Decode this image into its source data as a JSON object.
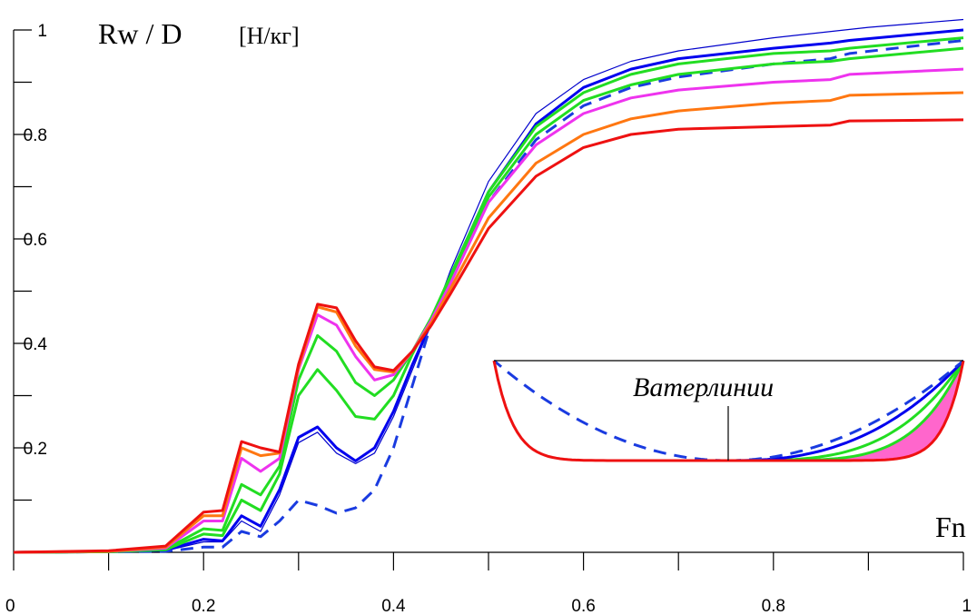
{
  "chart_data": {
    "type": "line",
    "ylabel": "Rw / D",
    "ylabel_unit": "[Н/кг]",
    "xlabel": "Fn",
    "xlim": [
      0,
      1
    ],
    "ylim": [
      0,
      1
    ],
    "x_ticks": [
      {
        "value": 0,
        "label": "0"
      },
      {
        "value": 0.2,
        "label": "0.2"
      },
      {
        "value": 0.4,
        "label": "0.4"
      },
      {
        "value": 0.6,
        "label": "0.6"
      },
      {
        "value": 0.8,
        "label": "0.8"
      },
      {
        "value": 1,
        "label": "1"
      }
    ],
    "x_minor_step": 0.1,
    "y_ticks": [
      {
        "value": 0.2,
        "label": "0.2"
      },
      {
        "value": 0.4,
        "label": "0.4"
      },
      {
        "value": 0.6,
        "label": "0.6"
      },
      {
        "value": 0.8,
        "label": "0.8"
      },
      {
        "value": 1,
        "label": "1"
      }
    ],
    "y_minor_step": 0.1,
    "grid": false,
    "legend": "none",
    "series": [
      {
        "color": "#0000cc",
        "dash": false,
        "width": 1.2,
        "x": [
          0,
          0.1,
          0.16,
          0.2,
          0.22,
          0.24,
          0.26,
          0.28,
          0.3,
          0.32,
          0.34,
          0.36,
          0.38,
          0.4,
          0.42,
          0.44,
          0.46,
          0.5,
          0.55,
          0.6,
          0.65,
          0.7,
          0.8,
          0.9,
          1.0
        ],
        "y": [
          0,
          0.001,
          0.003,
          0.02,
          0.02,
          0.06,
          0.04,
          0.11,
          0.21,
          0.23,
          0.19,
          0.17,
          0.19,
          0.26,
          0.35,
          0.44,
          0.54,
          0.71,
          0.84,
          0.905,
          0.94,
          0.96,
          0.985,
          1.005,
          1.02
        ]
      },
      {
        "color": "#0000ee",
        "dash": false,
        "width": 3,
        "x": [
          0,
          0.1,
          0.16,
          0.2,
          0.22,
          0.24,
          0.26,
          0.28,
          0.3,
          0.32,
          0.34,
          0.36,
          0.38,
          0.4,
          0.42,
          0.44,
          0.46,
          0.5,
          0.55,
          0.6,
          0.65,
          0.7,
          0.8,
          0.86,
          0.88,
          1.0
        ],
        "y": [
          0,
          0.001,
          0.004,
          0.025,
          0.022,
          0.07,
          0.05,
          0.12,
          0.22,
          0.24,
          0.2,
          0.175,
          0.2,
          0.27,
          0.36,
          0.44,
          0.53,
          0.69,
          0.82,
          0.89,
          0.925,
          0.945,
          0.965,
          0.975,
          0.98,
          1.0
        ]
      },
      {
        "color": "#1a3be0",
        "dash": true,
        "width": 3,
        "x": [
          0,
          0.1,
          0.16,
          0.2,
          0.22,
          0.24,
          0.26,
          0.28,
          0.3,
          0.32,
          0.34,
          0.36,
          0.38,
          0.4,
          0.42,
          0.44,
          0.46,
          0.5,
          0.55,
          0.6,
          0.65,
          0.7,
          0.8,
          0.86,
          0.88,
          1.0
        ],
        "y": [
          0,
          0.001,
          0.002,
          0.01,
          0.01,
          0.04,
          0.03,
          0.06,
          0.1,
          0.09,
          0.075,
          0.085,
          0.12,
          0.2,
          0.32,
          0.44,
          0.53,
          0.67,
          0.79,
          0.855,
          0.89,
          0.91,
          0.935,
          0.945,
          0.955,
          0.98
        ]
      },
      {
        "color": "#22dd22",
        "dash": false,
        "width": 3,
        "x": [
          0,
          0.1,
          0.16,
          0.2,
          0.22,
          0.24,
          0.26,
          0.28,
          0.3,
          0.32,
          0.34,
          0.36,
          0.38,
          0.4,
          0.42,
          0.44,
          0.46,
          0.5,
          0.55,
          0.6,
          0.65,
          0.7,
          0.8,
          0.86,
          0.88,
          1.0
        ],
        "y": [
          0,
          0.001,
          0.005,
          0.035,
          0.032,
          0.1,
          0.08,
          0.15,
          0.3,
          0.35,
          0.31,
          0.26,
          0.255,
          0.3,
          0.38,
          0.45,
          0.53,
          0.69,
          0.815,
          0.88,
          0.915,
          0.935,
          0.955,
          0.96,
          0.965,
          0.985
        ]
      },
      {
        "color": "#22dd22",
        "dash": false,
        "width": 3,
        "x": [
          0,
          0.1,
          0.16,
          0.2,
          0.22,
          0.24,
          0.26,
          0.28,
          0.3,
          0.32,
          0.34,
          0.36,
          0.38,
          0.4,
          0.42,
          0.44,
          0.46,
          0.5,
          0.55,
          0.6,
          0.65,
          0.7,
          0.8,
          0.86,
          0.88,
          1.0
        ],
        "y": [
          0,
          0.001,
          0.006,
          0.045,
          0.042,
          0.13,
          0.11,
          0.165,
          0.33,
          0.415,
          0.385,
          0.325,
          0.3,
          0.33,
          0.385,
          0.45,
          0.52,
          0.68,
          0.8,
          0.865,
          0.895,
          0.915,
          0.935,
          0.94,
          0.945,
          0.965
        ]
      },
      {
        "color": "#ee33ee",
        "dash": false,
        "width": 3,
        "x": [
          0,
          0.1,
          0.16,
          0.2,
          0.22,
          0.24,
          0.26,
          0.28,
          0.3,
          0.32,
          0.34,
          0.36,
          0.38,
          0.4,
          0.42,
          0.44,
          0.46,
          0.5,
          0.55,
          0.6,
          0.65,
          0.7,
          0.8,
          0.86,
          0.88,
          1.0
        ],
        "y": [
          0,
          0.002,
          0.008,
          0.06,
          0.06,
          0.18,
          0.155,
          0.18,
          0.35,
          0.455,
          0.435,
          0.375,
          0.33,
          0.34,
          0.385,
          0.445,
          0.515,
          0.67,
          0.78,
          0.84,
          0.87,
          0.885,
          0.9,
          0.905,
          0.915,
          0.925
        ]
      },
      {
        "color": "#ff7711",
        "dash": false,
        "width": 3,
        "x": [
          0,
          0.1,
          0.16,
          0.2,
          0.22,
          0.24,
          0.26,
          0.28,
          0.3,
          0.32,
          0.34,
          0.36,
          0.38,
          0.4,
          0.42,
          0.44,
          0.46,
          0.5,
          0.55,
          0.6,
          0.65,
          0.7,
          0.8,
          0.86,
          0.88,
          1.0
        ],
        "y": [
          0,
          0.002,
          0.01,
          0.07,
          0.07,
          0.2,
          0.185,
          0.19,
          0.355,
          0.47,
          0.46,
          0.395,
          0.35,
          0.345,
          0.385,
          0.44,
          0.505,
          0.64,
          0.745,
          0.8,
          0.83,
          0.845,
          0.86,
          0.865,
          0.875,
          0.88
        ]
      },
      {
        "color": "#ee1111",
        "dash": false,
        "width": 3,
        "x": [
          0,
          0.1,
          0.16,
          0.2,
          0.22,
          0.24,
          0.26,
          0.28,
          0.3,
          0.32,
          0.34,
          0.36,
          0.38,
          0.4,
          0.42,
          0.44,
          0.46,
          0.5,
          0.55,
          0.6,
          0.65,
          0.7,
          0.8,
          0.86,
          0.88,
          1.0
        ],
        "y": [
          0,
          0.003,
          0.012,
          0.077,
          0.08,
          0.212,
          0.2,
          0.192,
          0.36,
          0.475,
          0.468,
          0.405,
          0.355,
          0.348,
          0.385,
          0.435,
          0.495,
          0.62,
          0.72,
          0.775,
          0.8,
          0.81,
          0.815,
          0.818,
          0.826,
          0.828
        ]
      }
    ],
    "inset": {
      "label": "Ватерлинии",
      "stroke_color": "#000000",
      "fill_color": "#ff66cc",
      "red_color": "#ee1111",
      "blue_color": "#0000ee",
      "dash_color": "#1a3be0",
      "green_colors": [
        "#22dd22",
        "#22dd22"
      ],
      "green_exponents": [
        3.5,
        5
      ],
      "blue_exponent": 2.5,
      "red_exponent": 12
    }
  }
}
